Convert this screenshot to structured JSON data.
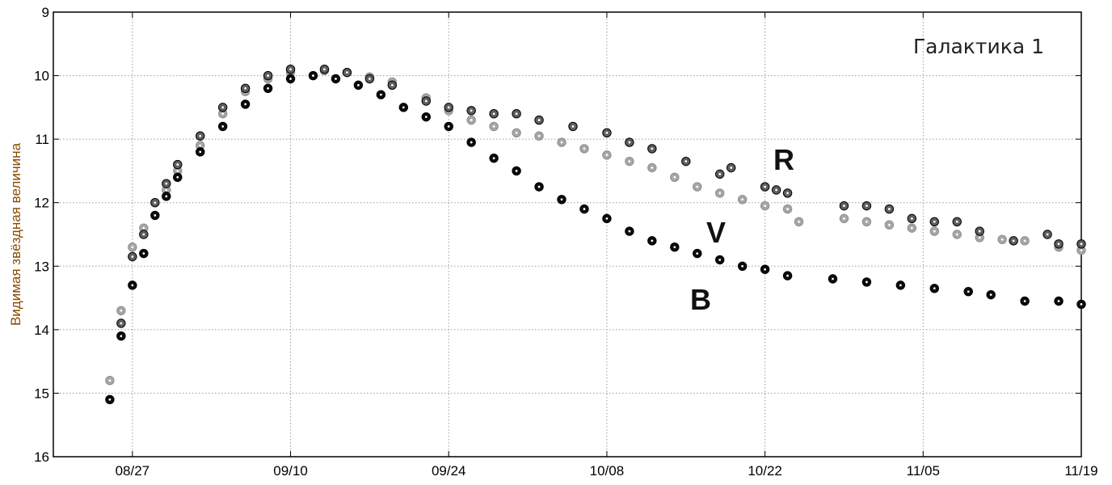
{
  "chart_data": {
    "type": "scatter",
    "title": "",
    "annotation": "Галактика 1",
    "ylabel": "Видимая звёздная величина",
    "xlabel": "",
    "x_ticks": [
      "08/27",
      "09/10",
      "09/24",
      "10/08",
      "10/22",
      "11/05",
      "11/19"
    ],
    "xlim": [
      "08/20",
      "11/19"
    ],
    "y_ticks": [
      "9",
      "10",
      "11",
      "12",
      "13",
      "14",
      "15",
      "16"
    ],
    "ylim": [
      9,
      16
    ],
    "y_inverted": true,
    "grid": true,
    "colors": {
      "R": "#a6a6a6",
      "V": "#5e5e5e",
      "B": "#0a0a0a"
    },
    "series": [
      {
        "name": "R",
        "points": [
          [
            "08/25",
            14.8
          ],
          [
            "08/26",
            13.7
          ],
          [
            "08/27",
            12.7
          ],
          [
            "08/28",
            12.4
          ],
          [
            "08/30",
            11.8
          ],
          [
            "08/31",
            11.5
          ],
          [
            "09/02",
            11.1
          ],
          [
            "09/04",
            10.6
          ],
          [
            "09/06",
            10.25
          ],
          [
            "09/08",
            10.05
          ],
          [
            "09/10",
            9.95
          ],
          [
            "09/13",
            9.92
          ],
          [
            "09/15",
            9.95
          ],
          [
            "09/17",
            10.02
          ],
          [
            "09/19",
            10.1
          ],
          [
            "09/22",
            10.35
          ],
          [
            "09/24",
            10.55
          ],
          [
            "09/26",
            10.7
          ],
          [
            "09/28",
            10.8
          ],
          [
            "09/30",
            10.9
          ],
          [
            "10/02",
            10.95
          ],
          [
            "10/04",
            11.05
          ],
          [
            "10/06",
            11.15
          ],
          [
            "10/08",
            11.25
          ],
          [
            "10/10",
            11.35
          ],
          [
            "10/12",
            11.45
          ],
          [
            "10/14",
            11.6
          ],
          [
            "10/16",
            11.75
          ],
          [
            "10/18",
            11.85
          ],
          [
            "10/20",
            11.95
          ],
          [
            "10/22",
            12.05
          ],
          [
            "10/24",
            12.1
          ],
          [
            "10/25",
            12.3
          ],
          [
            "10/29",
            12.25
          ],
          [
            "10/31",
            12.3
          ],
          [
            "11/02",
            12.35
          ],
          [
            "11/04",
            12.4
          ],
          [
            "11/06",
            12.45
          ],
          [
            "11/08",
            12.5
          ],
          [
            "11/10",
            12.55
          ],
          [
            "11/12",
            12.58
          ],
          [
            "11/14",
            12.6
          ],
          [
            "11/17",
            12.7
          ],
          [
            "11/19",
            12.75
          ]
        ]
      },
      {
        "name": "V",
        "points": [
          [
            "08/26",
            13.9
          ],
          [
            "08/27",
            12.85
          ],
          [
            "08/28",
            12.5
          ],
          [
            "08/29",
            12.0
          ],
          [
            "08/30",
            11.7
          ],
          [
            "08/31",
            11.4
          ],
          [
            "09/02",
            10.95
          ],
          [
            "09/04",
            10.5
          ],
          [
            "09/06",
            10.2
          ],
          [
            "09/08",
            10.0
          ],
          [
            "09/10",
            9.9
          ],
          [
            "09/13",
            9.9
          ],
          [
            "09/15",
            9.95
          ],
          [
            "09/17",
            10.05
          ],
          [
            "09/19",
            10.15
          ],
          [
            "09/22",
            10.4
          ],
          [
            "09/24",
            10.5
          ],
          [
            "09/26",
            10.55
          ],
          [
            "09/28",
            10.6
          ],
          [
            "09/30",
            10.6
          ],
          [
            "10/02",
            10.7
          ],
          [
            "10/05",
            10.8
          ],
          [
            "10/08",
            10.9
          ],
          [
            "10/10",
            11.05
          ],
          [
            "10/12",
            11.15
          ],
          [
            "10/15",
            11.35
          ],
          [
            "10/18",
            11.55
          ],
          [
            "10/19",
            11.45
          ],
          [
            "10/22",
            11.75
          ],
          [
            "10/23",
            11.8
          ],
          [
            "10/24",
            11.85
          ],
          [
            "10/29",
            12.05
          ],
          [
            "10/31",
            12.05
          ],
          [
            "11/02",
            12.1
          ],
          [
            "11/04",
            12.25
          ],
          [
            "11/06",
            12.3
          ],
          [
            "11/08",
            12.3
          ],
          [
            "11/10",
            12.45
          ],
          [
            "11/13",
            12.6
          ],
          [
            "11/16",
            12.5
          ],
          [
            "11/17",
            12.65
          ],
          [
            "11/19",
            12.65
          ]
        ]
      },
      {
        "name": "B",
        "points": [
          [
            "08/25",
            15.1
          ],
          [
            "08/26",
            14.1
          ],
          [
            "08/27",
            13.3
          ],
          [
            "08/28",
            12.8
          ],
          [
            "08/29",
            12.2
          ],
          [
            "08/30",
            11.9
          ],
          [
            "08/31",
            11.6
          ],
          [
            "09/02",
            11.2
          ],
          [
            "09/04",
            10.8
          ],
          [
            "09/06",
            10.45
          ],
          [
            "09/08",
            10.2
          ],
          [
            "09/10",
            10.05
          ],
          [
            "09/12",
            10.0
          ],
          [
            "09/14",
            10.05
          ],
          [
            "09/16",
            10.15
          ],
          [
            "09/18",
            10.3
          ],
          [
            "09/20",
            10.5
          ],
          [
            "09/22",
            10.65
          ],
          [
            "09/24",
            10.8
          ],
          [
            "09/26",
            11.05
          ],
          [
            "09/28",
            11.3
          ],
          [
            "09/30",
            11.5
          ],
          [
            "10/02",
            11.75
          ],
          [
            "10/04",
            11.95
          ],
          [
            "10/06",
            12.1
          ],
          [
            "10/08",
            12.25
          ],
          [
            "10/10",
            12.45
          ],
          [
            "10/12",
            12.6
          ],
          [
            "10/14",
            12.7
          ],
          [
            "10/16",
            12.8
          ],
          [
            "10/18",
            12.9
          ],
          [
            "10/20",
            13.0
          ],
          [
            "10/22",
            13.05
          ],
          [
            "10/24",
            13.15
          ],
          [
            "10/28",
            13.2
          ],
          [
            "10/31",
            13.25
          ],
          [
            "11/03",
            13.3
          ],
          [
            "11/06",
            13.35
          ],
          [
            "11/09",
            13.4
          ],
          [
            "11/11",
            13.45
          ],
          [
            "11/14",
            13.55
          ],
          [
            "11/17",
            13.55
          ],
          [
            "11/19",
            13.6
          ]
        ]
      }
    ]
  }
}
